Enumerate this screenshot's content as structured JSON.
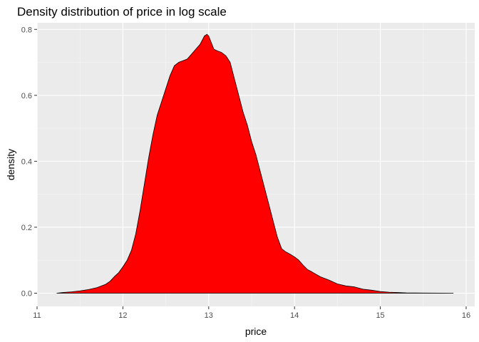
{
  "chart_data": {
    "type": "area",
    "title": "Density distribution of price in log scale",
    "xlabel": "price",
    "ylabel": "density",
    "xlim": [
      11,
      16.1
    ],
    "ylim": [
      -0.04,
      0.82
    ],
    "x_ticks": [
      11,
      12,
      13,
      14,
      15,
      16
    ],
    "x_tick_labels": [
      "11",
      "12",
      "13",
      "14",
      "15",
      "16"
    ],
    "y_ticks": [
      0.0,
      0.2,
      0.4,
      0.6,
      0.8
    ],
    "y_tick_labels": [
      "0.0",
      "0.2",
      "0.4",
      "0.6",
      "0.8"
    ],
    "grid": true,
    "legend": "none",
    "series": [
      {
        "fill_color": "#ff0000",
        "line_color": "#000000",
        "x": [
          11.23,
          11.3,
          11.4,
          11.5,
          11.6,
          11.7,
          11.8,
          11.85,
          11.9,
          11.95,
          12.0,
          12.05,
          12.1,
          12.15,
          12.2,
          12.25,
          12.3,
          12.35,
          12.4,
          12.45,
          12.5,
          12.55,
          12.6,
          12.65,
          12.7,
          12.75,
          12.8,
          12.85,
          12.9,
          12.95,
          12.98,
          13.0,
          13.03,
          13.06,
          13.1,
          13.15,
          13.2,
          13.25,
          13.3,
          13.35,
          13.4,
          13.45,
          13.5,
          13.55,
          13.6,
          13.65,
          13.7,
          13.75,
          13.8,
          13.85,
          13.9,
          13.95,
          14.0,
          14.05,
          14.1,
          14.15,
          14.2,
          14.3,
          14.4,
          14.5,
          14.6,
          14.7,
          14.8,
          14.9,
          15.0,
          15.1,
          15.2,
          15.3,
          15.5,
          15.7,
          15.85
        ],
        "y": [
          0.0,
          0.002,
          0.004,
          0.007,
          0.011,
          0.017,
          0.027,
          0.036,
          0.05,
          0.062,
          0.08,
          0.1,
          0.13,
          0.18,
          0.25,
          0.33,
          0.41,
          0.48,
          0.54,
          0.58,
          0.62,
          0.66,
          0.69,
          0.7,
          0.705,
          0.71,
          0.725,
          0.74,
          0.755,
          0.78,
          0.785,
          0.78,
          0.76,
          0.74,
          0.735,
          0.73,
          0.72,
          0.7,
          0.65,
          0.6,
          0.55,
          0.51,
          0.46,
          0.42,
          0.37,
          0.32,
          0.27,
          0.22,
          0.17,
          0.135,
          0.125,
          0.118,
          0.11,
          0.1,
          0.085,
          0.072,
          0.065,
          0.05,
          0.04,
          0.028,
          0.022,
          0.019,
          0.012,
          0.009,
          0.005,
          0.003,
          0.002,
          0.001,
          0.0005,
          0.0002,
          0.0
        ]
      }
    ]
  }
}
